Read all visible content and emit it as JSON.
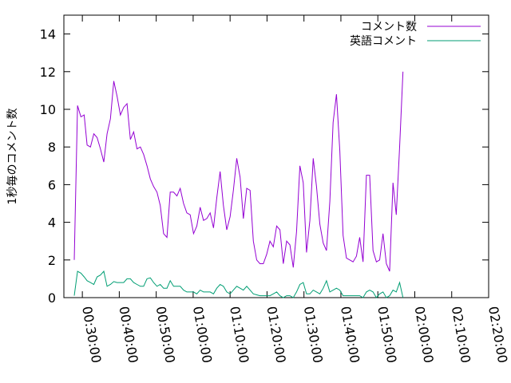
{
  "chart_data": {
    "type": "line",
    "ylabel": "1秒毎のコメント数",
    "xlabel": "",
    "title": "",
    "ylim": [
      0,
      15
    ],
    "yticks": [
      0,
      2,
      4,
      6,
      8,
      10,
      12,
      14
    ],
    "xlim_minutes": [
      25,
      140
    ],
    "xticks": [
      {
        "t": 30,
        "label": "00:30:00"
      },
      {
        "t": 40,
        "label": "00:40:00"
      },
      {
        "t": 50,
        "label": "00:50:00"
      },
      {
        "t": 60,
        "label": "01:00:00"
      },
      {
        "t": 70,
        "label": "01:10:00"
      },
      {
        "t": 80,
        "label": "01:20:00"
      },
      {
        "t": 90,
        "label": "01:30:00"
      },
      {
        "t": 100,
        "label": "01:40:00"
      },
      {
        "t": 110,
        "label": "01:50:00"
      },
      {
        "t": 120,
        "label": "02:00:00"
      },
      {
        "t": 130,
        "label": "02:10:00"
      },
      {
        "t": 140,
        "label": "02:20:00"
      }
    ],
    "grid": false,
    "legend_position": "top-right",
    "series": [
      {
        "name": "コメント数",
        "color": "#9400d3",
        "points": [
          [
            27.8,
            2.0
          ],
          [
            28.7,
            10.2
          ],
          [
            29.6,
            9.6
          ],
          [
            30.5,
            9.7
          ],
          [
            31.3,
            8.1
          ],
          [
            32.2,
            8.0
          ],
          [
            33.1,
            8.7
          ],
          [
            34.0,
            8.5
          ],
          [
            34.9,
            7.9
          ],
          [
            35.8,
            7.2
          ],
          [
            36.7,
            8.7
          ],
          [
            37.6,
            9.5
          ],
          [
            38.5,
            11.5
          ],
          [
            39.4,
            10.7
          ],
          [
            40.3,
            9.7
          ],
          [
            41.2,
            10.1
          ],
          [
            42.1,
            10.3
          ],
          [
            43.0,
            8.4
          ],
          [
            43.9,
            8.8
          ],
          [
            44.8,
            7.9
          ],
          [
            45.7,
            8.0
          ],
          [
            46.6,
            7.6
          ],
          [
            47.5,
            7.0
          ],
          [
            48.4,
            6.3
          ],
          [
            49.3,
            5.9
          ],
          [
            50.2,
            5.6
          ],
          [
            51.1,
            4.9
          ],
          [
            52.0,
            3.4
          ],
          [
            52.9,
            3.2
          ],
          [
            53.8,
            5.6
          ],
          [
            54.7,
            5.6
          ],
          [
            55.6,
            5.4
          ],
          [
            56.5,
            5.8
          ],
          [
            57.4,
            5.0
          ],
          [
            58.3,
            4.5
          ],
          [
            59.2,
            4.4
          ],
          [
            60.1,
            3.4
          ],
          [
            61.0,
            3.8
          ],
          [
            61.9,
            4.8
          ],
          [
            62.8,
            4.1
          ],
          [
            63.7,
            4.2
          ],
          [
            64.6,
            4.5
          ],
          [
            65.5,
            3.7
          ],
          [
            66.4,
            5.3
          ],
          [
            67.3,
            6.7
          ],
          [
            68.2,
            4.9
          ],
          [
            69.1,
            3.6
          ],
          [
            70.0,
            4.3
          ],
          [
            70.9,
            5.7
          ],
          [
            71.8,
            7.4
          ],
          [
            72.7,
            6.4
          ],
          [
            73.6,
            4.2
          ],
          [
            74.5,
            5.8
          ],
          [
            75.4,
            5.7
          ],
          [
            76.3,
            3.0
          ],
          [
            77.2,
            2.0
          ],
          [
            78.1,
            1.8
          ],
          [
            79.0,
            1.8
          ],
          [
            79.9,
            2.3
          ],
          [
            80.8,
            3.0
          ],
          [
            81.7,
            2.7
          ],
          [
            82.6,
            3.8
          ],
          [
            83.5,
            3.6
          ],
          [
            84.4,
            1.8
          ],
          [
            85.3,
            3.0
          ],
          [
            86.2,
            2.8
          ],
          [
            87.1,
            1.6
          ],
          [
            88.0,
            3.5
          ],
          [
            88.9,
            7.0
          ],
          [
            89.8,
            6.1
          ],
          [
            90.7,
            2.4
          ],
          [
            91.6,
            4.1
          ],
          [
            92.5,
            7.4
          ],
          [
            93.4,
            5.9
          ],
          [
            94.3,
            3.9
          ],
          [
            95.2,
            2.9
          ],
          [
            96.1,
            2.5
          ],
          [
            97.0,
            5.1
          ],
          [
            97.9,
            9.3
          ],
          [
            98.8,
            10.8
          ],
          [
            99.7,
            7.8
          ],
          [
            100.6,
            3.3
          ],
          [
            101.5,
            2.1
          ],
          [
            102.4,
            2.0
          ],
          [
            103.3,
            1.9
          ],
          [
            104.2,
            2.2
          ],
          [
            105.1,
            3.2
          ],
          [
            106.0,
            1.9
          ],
          [
            106.9,
            6.5
          ],
          [
            107.8,
            6.5
          ],
          [
            108.7,
            2.5
          ],
          [
            109.6,
            1.9
          ],
          [
            110.5,
            2.0
          ],
          [
            111.4,
            3.4
          ],
          [
            112.3,
            1.8
          ],
          [
            113.2,
            1.4
          ],
          [
            114.1,
            6.1
          ],
          [
            115.0,
            4.4
          ],
          [
            115.9,
            8.0
          ],
          [
            116.8,
            12.0
          ]
        ]
      },
      {
        "name": "英語コメント",
        "color": "#009e73",
        "points": [
          [
            27.8,
            0.1
          ],
          [
            28.7,
            1.4
          ],
          [
            29.6,
            1.3
          ],
          [
            30.5,
            1.1
          ],
          [
            31.3,
            0.9
          ],
          [
            32.2,
            0.8
          ],
          [
            33.1,
            0.7
          ],
          [
            34.0,
            1.1
          ],
          [
            34.9,
            1.2
          ],
          [
            35.8,
            1.4
          ],
          [
            36.7,
            0.6
          ],
          [
            37.6,
            0.7
          ],
          [
            38.5,
            0.85
          ],
          [
            39.4,
            0.8
          ],
          [
            40.3,
            0.8
          ],
          [
            41.2,
            0.8
          ],
          [
            42.1,
            1.0
          ],
          [
            43.0,
            1.0
          ],
          [
            43.9,
            0.8
          ],
          [
            44.8,
            0.7
          ],
          [
            45.7,
            0.6
          ],
          [
            46.6,
            0.6
          ],
          [
            47.5,
            1.0
          ],
          [
            48.4,
            1.05
          ],
          [
            49.3,
            0.8
          ],
          [
            50.2,
            0.6
          ],
          [
            51.1,
            0.7
          ],
          [
            52.0,
            0.5
          ],
          [
            52.9,
            0.5
          ],
          [
            53.8,
            0.9
          ],
          [
            54.7,
            0.6
          ],
          [
            55.6,
            0.6
          ],
          [
            56.5,
            0.6
          ],
          [
            57.4,
            0.4
          ],
          [
            58.3,
            0.3
          ],
          [
            59.2,
            0.3
          ],
          [
            60.1,
            0.3
          ],
          [
            61.0,
            0.2
          ],
          [
            61.9,
            0.4
          ],
          [
            62.8,
            0.3
          ],
          [
            63.7,
            0.3
          ],
          [
            64.6,
            0.3
          ],
          [
            65.5,
            0.2
          ],
          [
            66.4,
            0.5
          ],
          [
            67.3,
            0.7
          ],
          [
            68.2,
            0.6
          ],
          [
            69.1,
            0.3
          ],
          [
            70.0,
            0.2
          ],
          [
            70.9,
            0.4
          ],
          [
            71.8,
            0.6
          ],
          [
            72.7,
            0.5
          ],
          [
            73.6,
            0.4
          ],
          [
            74.5,
            0.6
          ],
          [
            75.4,
            0.4
          ],
          [
            76.3,
            0.2
          ],
          [
            77.2,
            0.15
          ],
          [
            78.1,
            0.1
          ],
          [
            79.0,
            0.1
          ],
          [
            79.9,
            0.1
          ],
          [
            80.8,
            0.1
          ],
          [
            81.7,
            0.2
          ],
          [
            82.6,
            0.3
          ],
          [
            83.5,
            0.1
          ],
          [
            84.4,
            0.0
          ],
          [
            85.3,
            0.1
          ],
          [
            86.2,
            0.1
          ],
          [
            87.1,
            0.0
          ],
          [
            88.0,
            0.3
          ],
          [
            88.9,
            0.7
          ],
          [
            89.8,
            0.8
          ],
          [
            90.7,
            0.2
          ],
          [
            91.6,
            0.2
          ],
          [
            92.5,
            0.4
          ],
          [
            93.4,
            0.3
          ],
          [
            94.3,
            0.2
          ],
          [
            95.2,
            0.5
          ],
          [
            96.1,
            0.9
          ],
          [
            97.0,
            0.3
          ],
          [
            97.9,
            0.4
          ],
          [
            98.8,
            0.5
          ],
          [
            99.7,
            0.4
          ],
          [
            100.6,
            0.1
          ],
          [
            101.5,
            0.1
          ],
          [
            102.4,
            0.1
          ],
          [
            103.3,
            0.1
          ],
          [
            104.2,
            0.1
          ],
          [
            105.1,
            0.1
          ],
          [
            106.0,
            0.0
          ],
          [
            106.9,
            0.3
          ],
          [
            107.8,
            0.4
          ],
          [
            108.7,
            0.3
          ],
          [
            109.6,
            0.0
          ],
          [
            110.5,
            0.2
          ],
          [
            111.4,
            0.3
          ],
          [
            112.3,
            0.0
          ],
          [
            113.2,
            0.1
          ],
          [
            114.1,
            0.4
          ],
          [
            115.0,
            0.3
          ],
          [
            115.9,
            0.8
          ],
          [
            116.8,
            0.0
          ]
        ]
      }
    ]
  }
}
